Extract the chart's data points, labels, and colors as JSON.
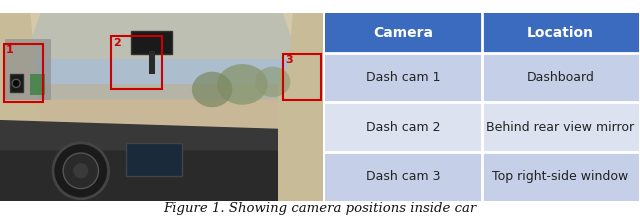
{
  "figure_caption": "Figure 1. Showing camera positions inside car",
  "caption_fontsize": 9.5,
  "header_color": "#3a6bbf",
  "header_text_color": "#ffffff",
  "row_colors": [
    "#c5cfe8",
    "#dce2f0"
  ],
  "col_headers": [
    "Camera",
    "Location"
  ],
  "rows": [
    [
      "Dash cam 1",
      "Dashboard"
    ],
    [
      "Dash cam 2",
      "Behind rear view mirror"
    ],
    [
      "Dash cam 3",
      "Top right-side window"
    ]
  ],
  "grid_color": "#ffffff",
  "text_color": "#222222",
  "header_fontsize": 10,
  "cell_fontsize": 9,
  "background_color": "#ffffff",
  "divider_color": "#aaaaaa",
  "box_colors": [
    "#cc0000",
    "#cc0000",
    "#cc0000"
  ],
  "box_labels": [
    "1",
    "2",
    "3"
  ]
}
